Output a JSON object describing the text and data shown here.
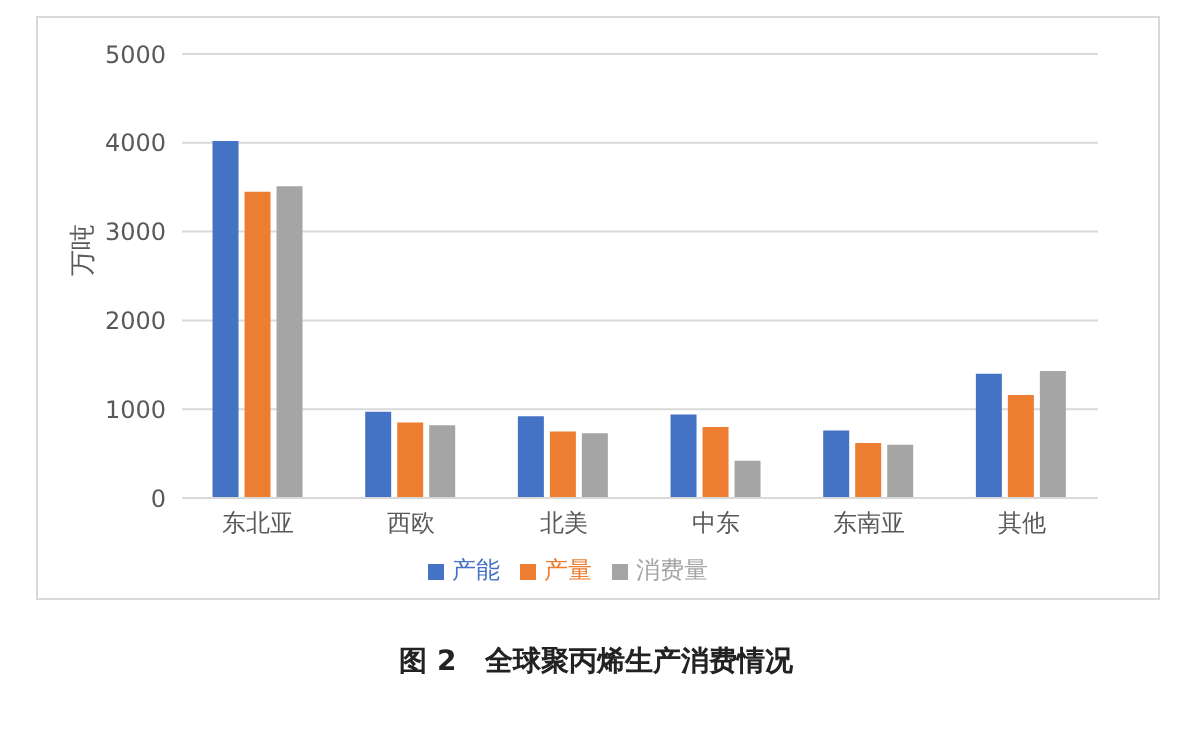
{
  "chart_data": {
    "type": "bar",
    "title": "图 2　全球聚丙烯生产消费情况",
    "ylabel": "万吨",
    "categories": [
      "东北亚",
      "西欧",
      "北美",
      "中东",
      "东南亚",
      "其他"
    ],
    "series": [
      {
        "name": "产能",
        "color": "#4472c4",
        "values": [
          4020,
          970,
          920,
          940,
          760,
          1400
        ]
      },
      {
        "name": "产量",
        "color": "#ed7d31",
        "values": [
          3450,
          850,
          750,
          800,
          620,
          1160
        ]
      },
      {
        "name": "消费量",
        "color": "#a5a5a5",
        "values": [
          3510,
          820,
          730,
          420,
          600,
          1430
        ]
      }
    ],
    "ylim": [
      0,
      5000
    ],
    "yticks": [
      0,
      1000,
      2000,
      3000,
      4000,
      5000
    ],
    "grid": "y",
    "legend": "bottom"
  }
}
